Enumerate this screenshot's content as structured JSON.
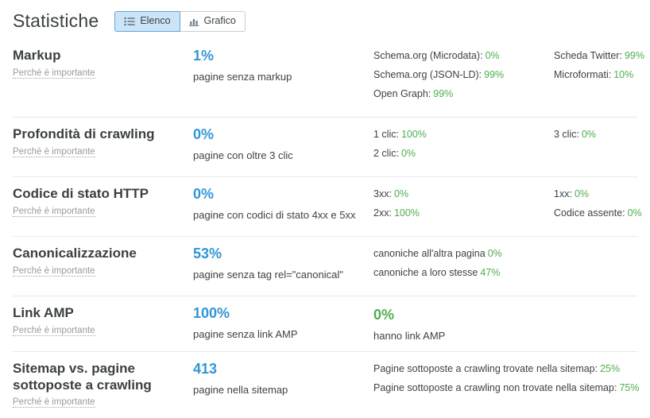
{
  "colors": {
    "blue": "#3196d5",
    "green": "#4fae4f",
    "toggle_active_bg": "#cbe4f8",
    "toggle_active_border": "#5ea5dc"
  },
  "header": {
    "title": "Statistiche",
    "toggle": {
      "options": [
        {
          "label": "Elenco",
          "icon": "list-icon",
          "active": true
        },
        {
          "label": "Grafico",
          "icon": "bar-chart-icon",
          "active": false
        }
      ]
    }
  },
  "rows": [
    {
      "title": "Markup",
      "why_link": "Perché è importante",
      "stat": {
        "value": "1%",
        "label": "pagine senza markup",
        "color": "blue"
      },
      "stat2": null,
      "col3": [
        {
          "label": "Schema.org (Microdata):",
          "value": "0%"
        },
        {
          "label": "Schema.org (JSON-LD):",
          "value": "99%"
        },
        {
          "label": "Open Graph:",
          "value": "99%"
        }
      ],
      "col4": [
        {
          "label": "Scheda Twitter:",
          "value": "99%"
        },
        {
          "label": "Microformati:",
          "value": "10%"
        }
      ]
    },
    {
      "title": "Profondità di crawling",
      "why_link": "Perché è importante",
      "stat": {
        "value": "0%",
        "label": "pagine con oltre 3 clic",
        "color": "blue"
      },
      "stat2": null,
      "col3": [
        {
          "label": "1 clic:",
          "value": "100%"
        },
        {
          "label": "2 clic:",
          "value": "0%"
        }
      ],
      "col4": [
        {
          "label": "3 clic:",
          "value": "0%"
        }
      ]
    },
    {
      "title": "Codice di stato HTTP",
      "why_link": "Perché è importante",
      "stat": {
        "value": "0%",
        "label": "pagine con codici di stato 4xx e 5xx",
        "color": "blue"
      },
      "stat2": null,
      "col3": [
        {
          "label": "3xx:",
          "value": "0%"
        },
        {
          "label": "2xx:",
          "value": "100%"
        }
      ],
      "col4": [
        {
          "label": "1xx:",
          "value": "0%"
        },
        {
          "label": "Codice assente:",
          "value": "0%"
        }
      ]
    },
    {
      "title": "Canonicalizzazione",
      "why_link": "Perché è importante",
      "stat": {
        "value": "53%",
        "label": "pagine senza tag rel=\"canonical\"",
        "color": "blue"
      },
      "stat2": null,
      "col3": [
        {
          "label": "canoniche all'altra pagina",
          "value": "0%"
        },
        {
          "label": "canoniche a loro stesse",
          "value": "47%"
        }
      ],
      "col4": []
    },
    {
      "title": "Link AMP",
      "why_link": "Perché è importante",
      "stat": {
        "value": "100%",
        "label": "pagine senza link AMP",
        "color": "blue"
      },
      "stat2": {
        "value": "0%",
        "label": "hanno link AMP",
        "color": "green"
      },
      "col3": [],
      "col4": []
    },
    {
      "title": "Sitemap vs. pagine sottoposte a crawling",
      "why_link": "Perché è importante",
      "stat": {
        "value": "413",
        "label": "pagine nella sitemap",
        "color": "blue"
      },
      "stat2": null,
      "col3": [
        {
          "label": "Pagine sottoposte a crawling trovate nella sitemap:",
          "value": "25%"
        },
        {
          "label": "Pagine sottoposte a crawling non trovate nella sitemap:",
          "value": "75%"
        }
      ],
      "col4": []
    }
  ]
}
